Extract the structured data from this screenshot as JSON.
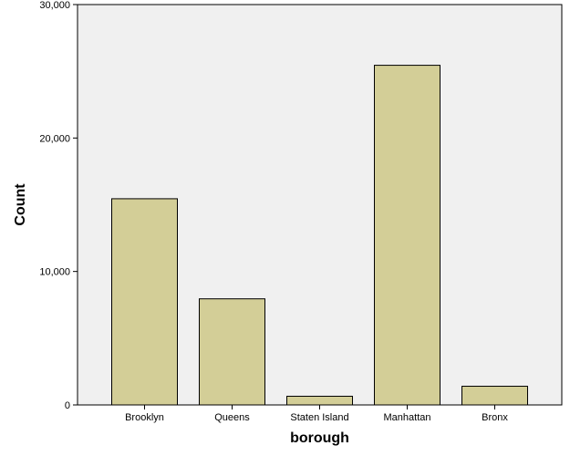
{
  "colors": {
    "plot_background": "#f0f0f0",
    "bar_fill": "#d3ce97",
    "bar_stroke": "#000000"
  },
  "chart_data": {
    "type": "bar",
    "categories": [
      "Brooklyn",
      "Queens",
      "Staten Island",
      "Manhattan",
      "Bronx"
    ],
    "values": [
      15450,
      7950,
      650,
      25450,
      1400
    ],
    "xlabel": "borough",
    "ylabel": "Count",
    "ylim": [
      0,
      30000
    ],
    "yticks": [
      0,
      10000,
      20000,
      30000
    ],
    "ytick_labels": [
      "0",
      "10,000",
      "20,000",
      "30,000"
    ],
    "grid": false,
    "legend": "none"
  }
}
